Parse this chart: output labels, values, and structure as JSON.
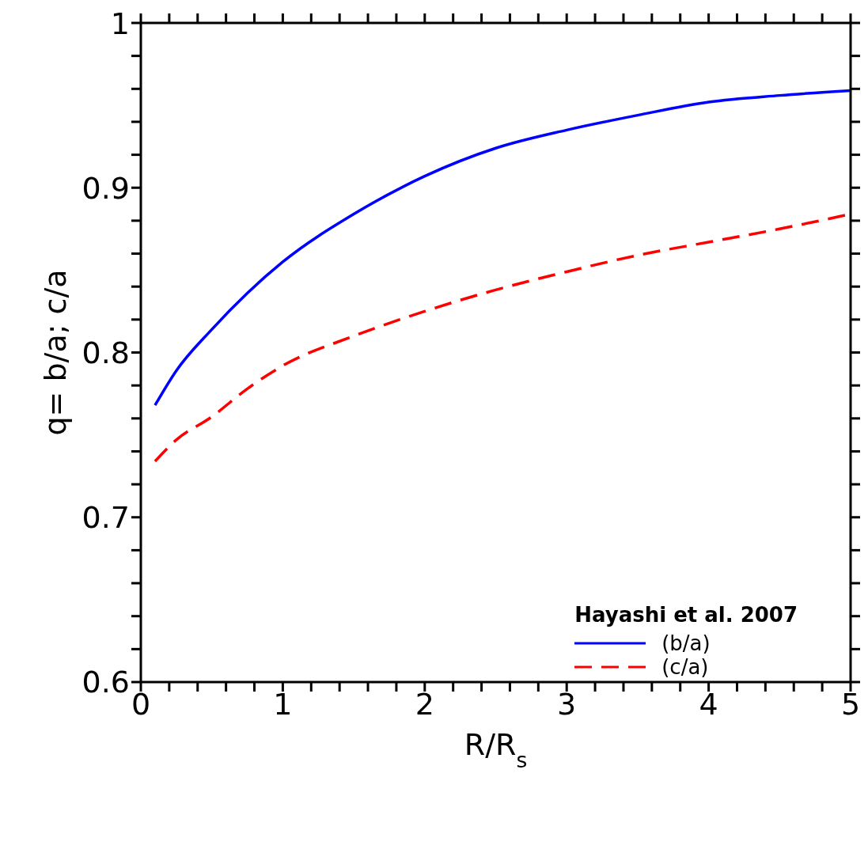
{
  "chart_data": {
    "type": "line",
    "xlabel": "R/R$_{s}$",
    "ylabel": "q= b/a; c/a",
    "legend_title": "Hayashi et al. 2007",
    "legend": "bottom right",
    "x": [
      0.1,
      0.25,
      0.5,
      0.75,
      1,
      1.5,
      2,
      2.5,
      3,
      3.5,
      4,
      4.5,
      5
    ],
    "series": [
      {
        "name": "(b/a)",
        "color": "#0000ff",
        "line_style": "solid",
        "values": [
          0.768,
          0.789,
          0.814,
          0.836,
          0.855,
          0.884,
          0.907,
          0.924,
          0.935,
          0.944,
          0.952,
          0.956,
          0.959
        ]
      },
      {
        "name": "(c/a)",
        "color": "#ff0000",
        "line_style": "dashed",
        "values": [
          0.734,
          0.747,
          0.761,
          0.778,
          0.792,
          0.81,
          0.825,
          0.838,
          0.849,
          0.859,
          0.867,
          0.875,
          0.884
        ]
      }
    ],
    "xlim": [
      0,
      5
    ],
    "ylim": [
      0.6,
      1
    ],
    "xticks": [
      0,
      {
        "value": 0.2,
        "label": null
      },
      {
        "value": 0.4,
        "label": null
      },
      {
        "value": 0.6,
        "label": null
      },
      {
        "value": 0.8,
        "label": null
      },
      1,
      {
        "value": 1.2,
        "label": null
      },
      {
        "value": 1.4,
        "label": null
      },
      {
        "value": 1.6,
        "label": null
      },
      {
        "value": 1.8,
        "label": null
      },
      2,
      {
        "value": 2.2,
        "label": null
      },
      {
        "value": 2.4,
        "label": null
      },
      {
        "value": 2.6,
        "label": null
      },
      {
        "value": 2.8,
        "label": null
      },
      3,
      {
        "value": 3.2,
        "label": null
      },
      {
        "value": 3.4,
        "label": null
      },
      {
        "value": 3.6,
        "label": null
      },
      {
        "value": 3.8,
        "label": null
      },
      4,
      {
        "value": 4.2,
        "label": null
      },
      {
        "value": 4.4,
        "label": null
      },
      {
        "value": 4.6,
        "label": null
      },
      {
        "value": 4.8,
        "label": null
      },
      5
    ],
    "yticks": [
      0.6,
      {
        "value": 0.62,
        "label": null
      },
      {
        "value": 0.64,
        "label": null
      },
      {
        "value": 0.66,
        "label": null
      },
      {
        "value": 0.68,
        "label": null
      },
      0.7,
      {
        "value": 0.72,
        "label": null
      },
      {
        "value": 0.74,
        "label": null
      },
      {
        "value": 0.76,
        "label": null
      },
      {
        "value": 0.78,
        "label": null
      },
      0.8,
      {
        "value": 0.82,
        "label": null
      },
      {
        "value": 0.84,
        "label": null
      },
      {
        "value": 0.86,
        "label": null
      },
      {
        "value": 0.88,
        "label": null
      },
      0.9,
      {
        "value": 0.92,
        "label": null
      },
      {
        "value": 0.94,
        "label": null
      },
      {
        "value": 0.96,
        "label": null
      },
      {
        "value": 0.98,
        "label": null
      },
      1
    ],
    "grid": false
  }
}
